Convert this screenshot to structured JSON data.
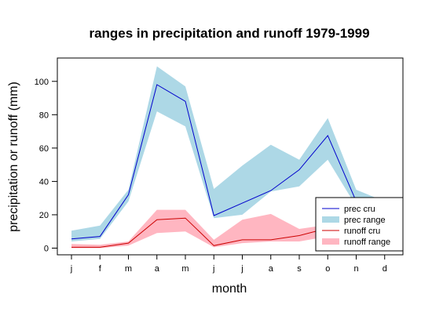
{
  "chart_data": {
    "type": "line",
    "title": "ranges in precipitation and runoff 1979-1999",
    "xlabel": "month",
    "ylabel": "precipitation or runoff (mm)",
    "categories": [
      "j",
      "f",
      "m",
      "a",
      "m",
      "j",
      "j",
      "a",
      "s",
      "o",
      "n",
      "d"
    ],
    "yticks": [
      0,
      20,
      40,
      60,
      80,
      100
    ],
    "ylim": [
      -4,
      114
    ],
    "grid": false,
    "legend_position": "bottom-right",
    "series": [
      {
        "name": "prec cru",
        "kind": "line",
        "color": "#0000cc",
        "values": [
          5.5,
          7,
          32,
          98,
          88,
          19.5,
          27,
          34.5,
          47,
          67.5,
          28,
          22
        ]
      },
      {
        "name": "prec range",
        "kind": "band",
        "color": "#add8e6",
        "lower": [
          4,
          5.5,
          28,
          82,
          73,
          18,
          20,
          34,
          37,
          53,
          25,
          15
        ],
        "upper": [
          10.5,
          13.5,
          35,
          109,
          97,
          35.5,
          49.5,
          62,
          53,
          78,
          35,
          28
        ]
      },
      {
        "name": "runoff cru",
        "kind": "line",
        "color": "#cc0000",
        "values": [
          0.5,
          0.5,
          3,
          17,
          18,
          1.5,
          5,
          5,
          7.5,
          12,
          10,
          8
        ]
      },
      {
        "name": "runoff range",
        "kind": "band",
        "color": "#ffb6c1",
        "lower": [
          0,
          0,
          1.5,
          9,
          10,
          0.5,
          3,
          4,
          4,
          7,
          6,
          5
        ],
        "upper": [
          2.5,
          2,
          4,
          23,
          23,
          5,
          17,
          20.5,
          11.5,
          14,
          12,
          10
        ]
      }
    ]
  }
}
